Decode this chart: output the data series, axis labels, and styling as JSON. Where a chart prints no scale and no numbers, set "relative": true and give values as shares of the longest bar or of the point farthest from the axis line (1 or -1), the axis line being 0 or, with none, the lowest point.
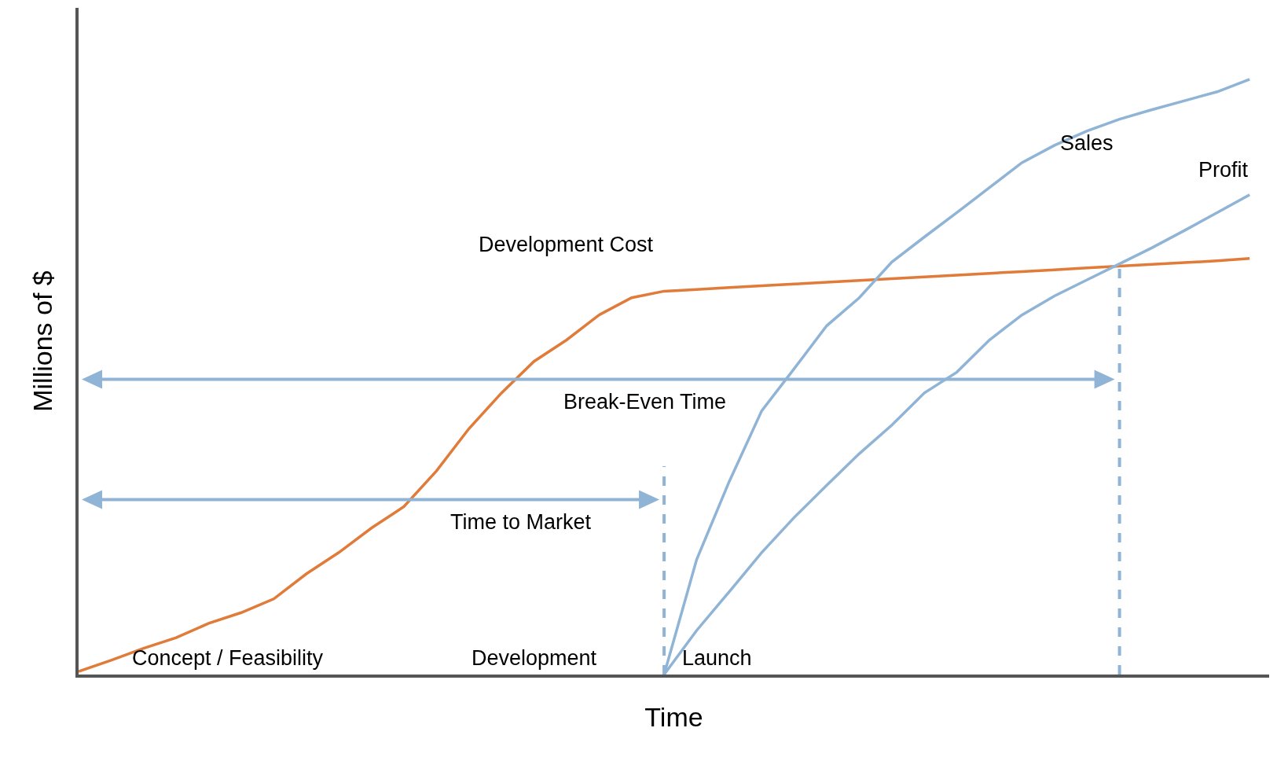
{
  "chart_data": {
    "type": "line",
    "relative": true,
    "xlabel": "Time",
    "ylabel": "Millions of $",
    "categories": [
      null,
      null,
      null,
      null,
      null,
      null,
      null,
      null,
      null,
      null,
      null,
      null,
      null,
      null,
      null,
      null,
      null,
      null,
      null,
      null,
      null,
      null,
      null,
      null,
      null,
      null,
      null,
      null,
      null,
      null,
      null,
      null,
      null,
      null,
      null,
      null,
      null
    ],
    "series": [
      {
        "name": "Development Cost",
        "color": "#e07b39",
        "values": [
          0.005,
          0.024,
          0.044,
          0.062,
          0.086,
          0.104,
          0.127,
          0.169,
          0.205,
          0.246,
          0.282,
          0.342,
          0.413,
          0.473,
          0.526,
          0.562,
          0.604,
          0.633,
          0.644,
          0.647,
          0.65,
          0.653,
          0.656,
          0.659,
          0.662,
          0.665,
          0.668,
          0.671,
          0.674,
          0.677,
          0.68,
          0.683,
          0.686,
          0.689,
          0.692,
          0.695,
          0.699
        ]
      },
      {
        "name": "Sales",
        "color": "#8fb4d6",
        "values": [
          null,
          null,
          null,
          null,
          null,
          null,
          null,
          null,
          null,
          null,
          null,
          null,
          null,
          null,
          null,
          null,
          null,
          null,
          0,
          0.193,
          0.324,
          0.443,
          0.514,
          0.586,
          0.633,
          0.693,
          0.735,
          0.776,
          0.818,
          0.86,
          0.889,
          0.913,
          0.933,
          0.949,
          0.964,
          0.979,
          1
        ]
      },
      {
        "name": "Profit",
        "color": "#8fb4d6",
        "values": [
          null,
          null,
          null,
          null,
          null,
          null,
          null,
          null,
          null,
          null,
          null,
          null,
          null,
          null,
          null,
          null,
          null,
          null,
          0,
          0.074,
          0.139,
          0.205,
          0.264,
          0.318,
          0.371,
          0.419,
          0.473,
          0.508,
          0.562,
          0.604,
          0.636,
          0.663,
          0.69,
          0.717,
          0.746,
          0.776,
          0.806
        ]
      }
    ],
    "annotations": [
      "Time to Market",
      "Break-Even Time",
      "Concept / Feasibility",
      "Development",
      "Launch"
    ],
    "grid": false,
    "legend": false,
    "marker": "none",
    "line_style": "solid"
  }
}
